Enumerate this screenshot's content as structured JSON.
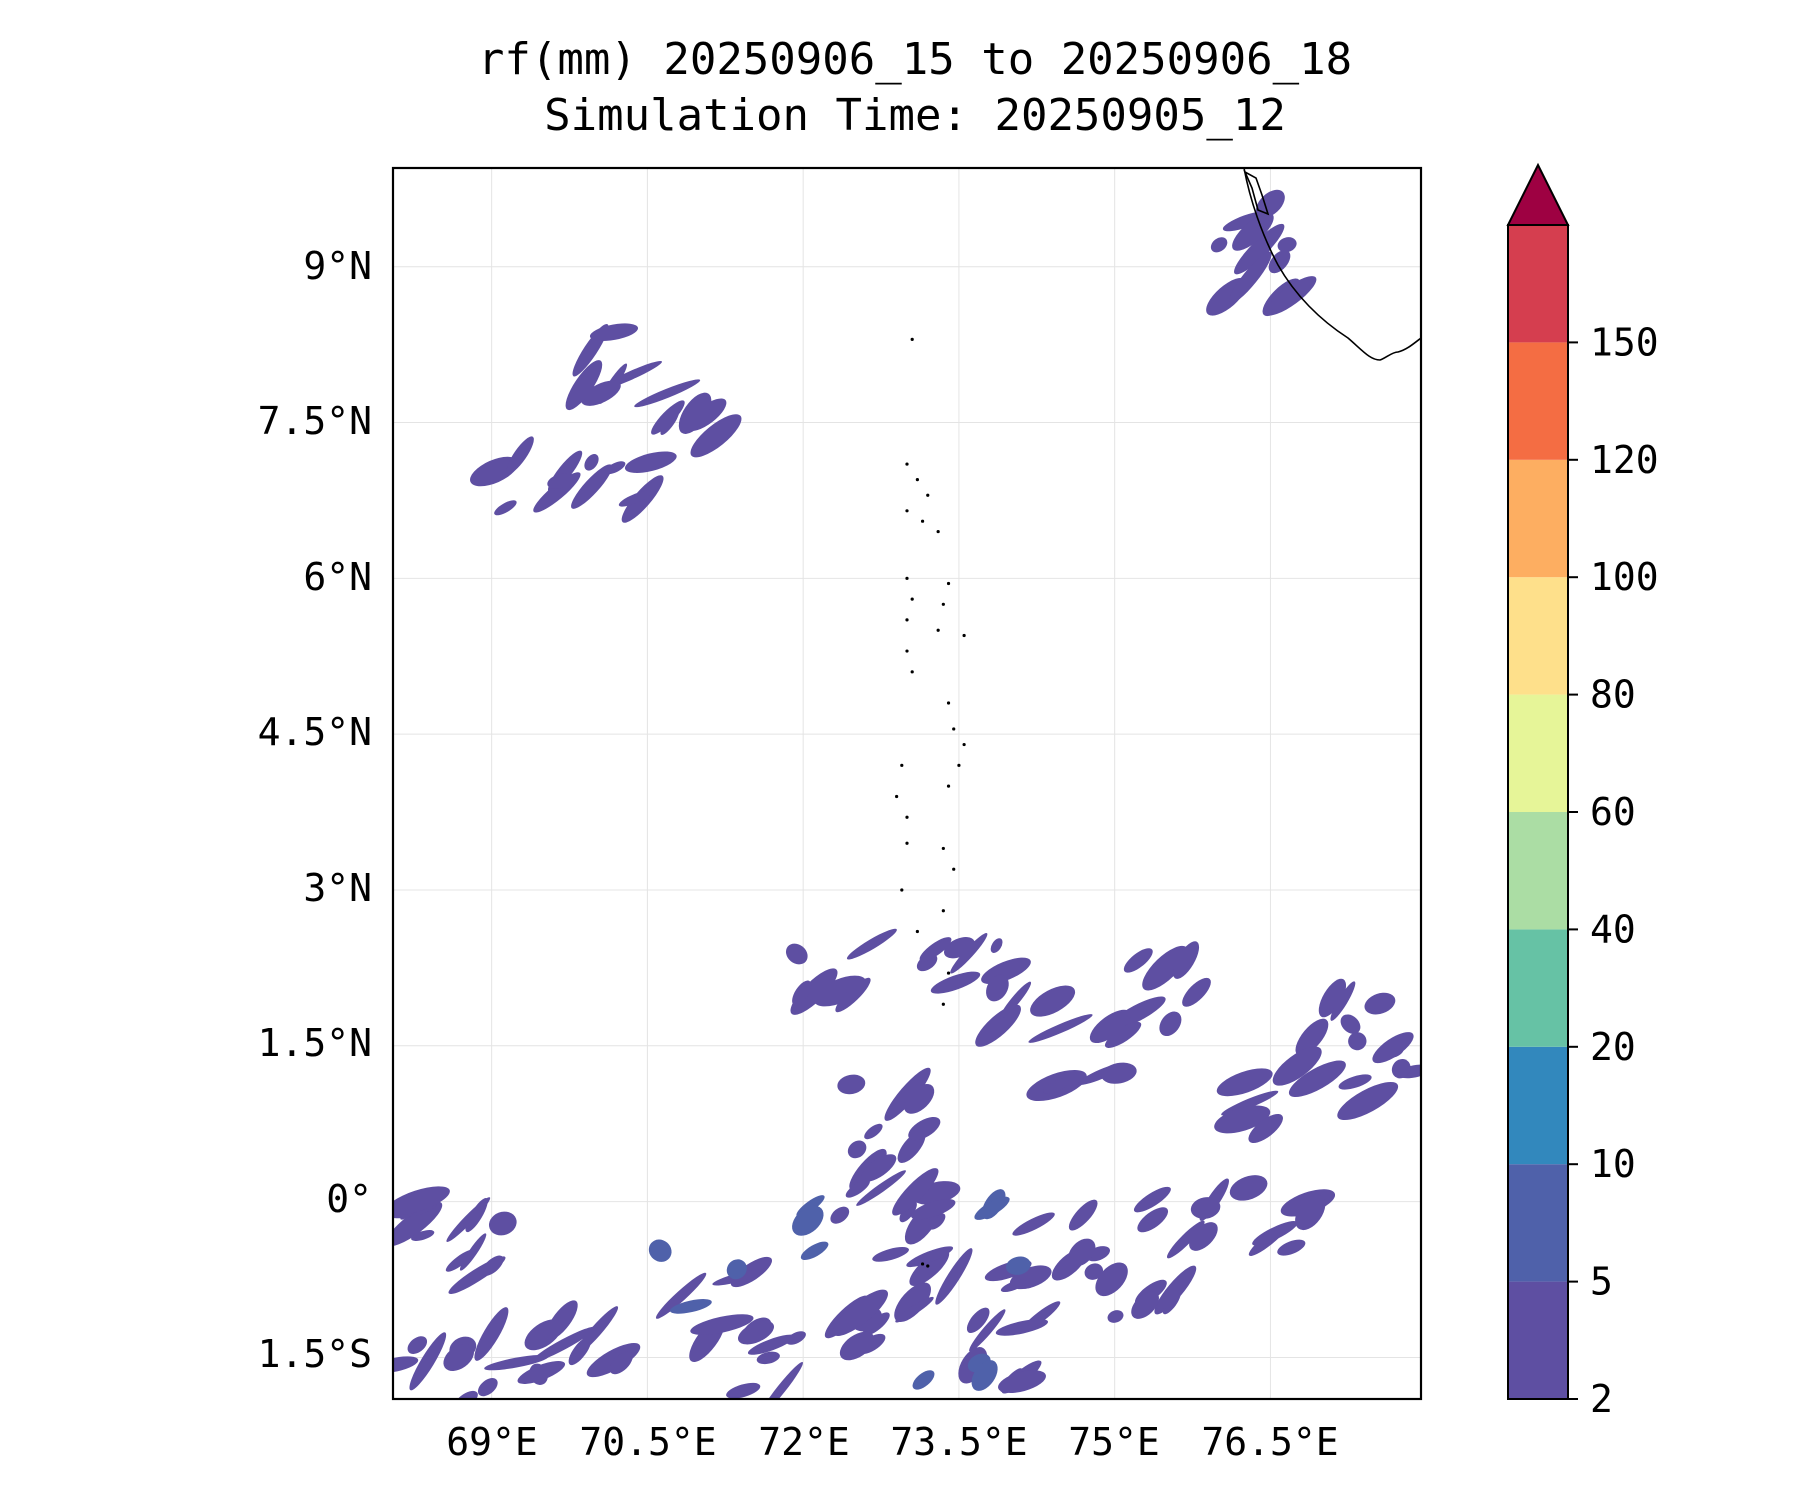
{
  "chart_data": {
    "type": "heatmap",
    "subtype": "filled-contour-map",
    "title": "rf(mm) 20250906_15 to 20250906_18",
    "subtitle": "Simulation Time: 20250905_12",
    "x_ticks": [
      69,
      70.5,
      72,
      73.5,
      75,
      76.5
    ],
    "x_tick_labels": [
      "69°E",
      "70.5°E",
      "72°E",
      "73.5°E",
      "75°E",
      "76.5°E"
    ],
    "y_ticks": [
      9,
      7.5,
      6,
      4.5,
      3,
      1.5,
      0,
      -1.5
    ],
    "y_tick_labels": [
      "9°N",
      "7.5°N",
      "6°N",
      "4.5°N",
      "3°N",
      "1.5°N",
      "0°",
      "1.5°S"
    ],
    "xlim": [
      68.05,
      77.95
    ],
    "ylim": [
      -1.9,
      9.95
    ],
    "grid": true,
    "colorbar": {
      "levels": [
        2,
        5,
        10,
        20,
        40,
        60,
        80,
        100,
        120,
        150
      ],
      "level_labels": [
        "2",
        "5",
        "10",
        "20",
        "40",
        "60",
        "80",
        "100",
        "120",
        "150"
      ],
      "colors": [
        "#5e4fa2",
        "#4f61aa",
        "#3288bd",
        "#66c2a5",
        "#abdda4",
        "#e6f598",
        "#fee08b",
        "#fdae61",
        "#f46d43",
        "#d53e4f"
      ],
      "extend_color": "#9e0142",
      "extend": "max",
      "placement": "right"
    },
    "rain_blobs": [
      {
        "lon": 76.3,
        "lat": 9.4,
        "level": 0
      },
      {
        "lon": 76.4,
        "lat": 8.9,
        "level": 0
      },
      {
        "lon": 70.2,
        "lat": 8.1,
        "level": 0
      },
      {
        "lon": 70.8,
        "lat": 7.65,
        "level": 0
      },
      {
        "lon": 69.4,
        "lat": 6.95,
        "level": 0
      },
      {
        "lon": 70.2,
        "lat": 6.9,
        "level": 0
      },
      {
        "lon": 72.3,
        "lat": 2.3,
        "level": 0
      },
      {
        "lon": 73.5,
        "lat": 2.4,
        "level": 0
      },
      {
        "lon": 74.1,
        "lat": 2.0,
        "level": 0
      },
      {
        "lon": 75.6,
        "lat": 2.0,
        "level": 0
      },
      {
        "lon": 77.2,
        "lat": 1.8,
        "level": 0
      },
      {
        "lon": 77.6,
        "lat": 1.2,
        "level": 0
      },
      {
        "lon": 76.6,
        "lat": 1.0,
        "level": 0
      },
      {
        "lon": 74.8,
        "lat": 1.4,
        "level": 0
      },
      {
        "lon": 72.8,
        "lat": 0.8,
        "level": 0
      },
      {
        "lon": 72.5,
        "lat": 0.2,
        "level": 0
      },
      {
        "lon": 73.0,
        "lat": 0.1,
        "level": 0
      },
      {
        "lon": 74.5,
        "lat": -0.4,
        "level": 0
      },
      {
        "lon": 75.6,
        "lat": -0.1,
        "level": 0
      },
      {
        "lon": 76.6,
        "lat": -0.2,
        "level": 0
      },
      {
        "lon": 68.4,
        "lat": -0.3,
        "level": 0
      },
      {
        "lon": 69.0,
        "lat": -0.4,
        "level": 0
      },
      {
        "lon": 70.0,
        "lat": -1.3,
        "level": 0
      },
      {
        "lon": 71.2,
        "lat": -1.0,
        "level": 0
      },
      {
        "lon": 71.6,
        "lat": -1.5,
        "level": 0
      },
      {
        "lon": 72.4,
        "lat": -1.2,
        "level": 0
      },
      {
        "lon": 73.2,
        "lat": -0.8,
        "level": 0
      },
      {
        "lon": 73.8,
        "lat": -1.4,
        "level": 0
      },
      {
        "lon": 74.3,
        "lat": -1.0,
        "level": 0
      },
      {
        "lon": 75.2,
        "lat": -0.8,
        "level": 0
      },
      {
        "lon": 68.4,
        "lat": -1.6,
        "level": 0
      },
      {
        "lon": 69.2,
        "lat": -1.5,
        "level": 0
      },
      {
        "lon": 71.0,
        "lat": -0.8,
        "level": 1
      },
      {
        "lon": 72.2,
        "lat": -0.3,
        "level": 1
      },
      {
        "lon": 74.0,
        "lat": -0.3,
        "level": 1
      },
      {
        "lon": 73.4,
        "lat": -1.45,
        "level": 1
      }
    ]
  }
}
